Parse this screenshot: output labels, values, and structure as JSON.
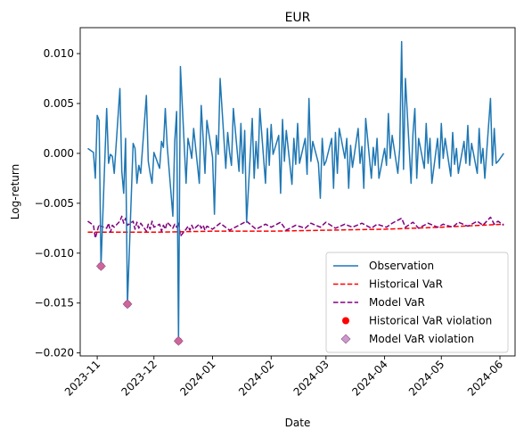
{
  "chart_data": {
    "type": "line",
    "title": "EUR",
    "xlabel": "Date",
    "ylabel": "Log-return",
    "x_range": [
      "2023-10-23",
      "2024-06-09"
    ],
    "ylim": [
      -0.0203,
      0.0126
    ],
    "x_ticks": [
      "2023-11-01",
      "2023-12-01",
      "2024-01-01",
      "2024-02-01",
      "2024-03-01",
      "2024-04-01",
      "2024-05-01",
      "2024-06-01"
    ],
    "x_tick_labels": [
      "2023-11",
      "2023-12",
      "2024-01",
      "2024-02",
      "2024-03",
      "2024-04",
      "2024-05",
      "2024-06"
    ],
    "y_ticks": [
      -0.02,
      -0.015,
      -0.01,
      -0.005,
      0.0,
      0.005,
      0.01
    ],
    "y_tick_labels": [
      "−0.020",
      "−0.015",
      "−0.010",
      "−0.005",
      "0.000",
      "0.005",
      "0.010"
    ],
    "grid": false,
    "legend_position": "lower-right",
    "colors": {
      "observation": "#1f77b4",
      "historical_var": "#ff0000",
      "model_var": "#800080",
      "historical_violation": "#ff0000",
      "model_violation": "#c080c0"
    },
    "series": [
      {
        "name": "Observation",
        "style": "solid",
        "points": [
          [
            "2023-10-27",
            0.0005
          ],
          [
            "2023-10-30",
            0.0001
          ],
          [
            "2023-10-31",
            -0.0025
          ],
          [
            "2023-11-01",
            0.0038
          ],
          [
            "2023-11-02",
            0.0033
          ],
          [
            "2023-11-03",
            -0.0113
          ],
          [
            "2023-11-06",
            0.0045
          ],
          [
            "2023-11-07",
            -0.001
          ],
          [
            "2023-11-08",
            -0.0001
          ],
          [
            "2023-11-09",
            -0.0003
          ],
          [
            "2023-11-10",
            -0.002
          ],
          [
            "2023-11-13",
            0.0065
          ],
          [
            "2023-11-14",
            -0.0018
          ],
          [
            "2023-11-15",
            -0.004
          ],
          [
            "2023-11-16",
            0.0015
          ],
          [
            "2023-11-17",
            -0.0151
          ],
          [
            "2023-11-20",
            0.001
          ],
          [
            "2023-11-21",
            0.0005
          ],
          [
            "2023-11-22",
            -0.003
          ],
          [
            "2023-11-23",
            -0.0012
          ],
          [
            "2023-11-24",
            -0.002
          ],
          [
            "2023-11-27",
            0.0058
          ],
          [
            "2023-11-28",
            -0.0008
          ],
          [
            "2023-11-29",
            -0.002
          ],
          [
            "2023-11-30",
            -0.003
          ],
          [
            "2023-12-01",
            0.0001
          ],
          [
            "2023-12-04",
            -0.0015
          ],
          [
            "2023-12-05",
            0.0012
          ],
          [
            "2023-12-06",
            0.0006
          ],
          [
            "2023-12-07",
            0.0045
          ],
          [
            "2023-12-08",
            0.0008
          ],
          [
            "2023-12-11",
            -0.0063
          ],
          [
            "2023-12-12",
            0.0012
          ],
          [
            "2023-12-13",
            0.0042
          ],
          [
            "2023-12-14",
            -0.0188
          ],
          [
            "2023-12-15",
            0.0087
          ],
          [
            "2023-12-18",
            -0.003
          ],
          [
            "2023-12-19",
            0.0015
          ],
          [
            "2023-12-20",
            0.0006
          ],
          [
            "2023-12-21",
            -0.0005
          ],
          [
            "2023-12-22",
            0.0025
          ],
          [
            "2023-12-25",
            -0.003
          ],
          [
            "2023-12-26",
            0.0048
          ],
          [
            "2023-12-27",
            0.0016
          ],
          [
            "2023-12-28",
            -0.002
          ],
          [
            "2023-12-29",
            0.0033
          ],
          [
            "2024-01-01",
            -0.0004
          ],
          [
            "2024-01-02",
            -0.0061
          ],
          [
            "2024-01-03",
            0.0018
          ],
          [
            "2024-01-04",
            -0.0001
          ],
          [
            "2024-01-05",
            0.0075
          ],
          [
            "2024-01-08",
            -0.0015
          ],
          [
            "2024-01-09",
            0.0021
          ],
          [
            "2024-01-10",
            0.0001
          ],
          [
            "2024-01-11",
            -0.0012
          ],
          [
            "2024-01-12",
            0.0045
          ],
          [
            "2024-01-15",
            -0.0018
          ],
          [
            "2024-01-16",
            0.003
          ],
          [
            "2024-01-17",
            -0.002
          ],
          [
            "2024-01-18",
            0.0023
          ],
          [
            "2024-01-19",
            -0.0069
          ],
          [
            "2024-01-22",
            0.0035
          ],
          [
            "2024-01-23",
            -0.0025
          ],
          [
            "2024-01-24",
            0.0012
          ],
          [
            "2024-01-25",
            -0.0015
          ],
          [
            "2024-01-26",
            0.0045
          ],
          [
            "2024-01-29",
            -0.003
          ],
          [
            "2024-01-30",
            0.0025
          ],
          [
            "2024-01-31",
            -0.0012
          ],
          [
            "2024-02-01",
            0.0029
          ],
          [
            "2024-02-02",
            -0.0001
          ],
          [
            "2024-02-05",
            0.0018
          ],
          [
            "2024-02-06",
            -0.004
          ],
          [
            "2024-02-07",
            0.0034
          ],
          [
            "2024-02-08",
            -0.0008
          ],
          [
            "2024-02-09",
            0.0023
          ],
          [
            "2024-02-12",
            -0.0031
          ],
          [
            "2024-02-13",
            0.0015
          ],
          [
            "2024-02-14",
            -0.0011
          ],
          [
            "2024-02-15",
            0.003
          ],
          [
            "2024-02-16",
            -0.001
          ],
          [
            "2024-02-19",
            0.0015
          ],
          [
            "2024-02-20",
            -0.0021
          ],
          [
            "2024-02-21",
            0.0055
          ],
          [
            "2024-02-22",
            -0.0008
          ],
          [
            "2024-02-23",
            0.0012
          ],
          [
            "2024-02-26",
            -0.001
          ],
          [
            "2024-02-27",
            -0.0045
          ],
          [
            "2024-02-28",
            0.0015
          ],
          [
            "2024-02-29",
            -0.0012
          ],
          [
            "2024-03-01",
            -0.0008
          ],
          [
            "2024-03-04",
            0.0015
          ],
          [
            "2024-03-05",
            -0.0035
          ],
          [
            "2024-03-06",
            0.0021
          ],
          [
            "2024-03-07",
            -0.002
          ],
          [
            "2024-03-08",
            0.0025
          ],
          [
            "2024-03-11",
            -0.0005
          ],
          [
            "2024-03-12",
            0.0015
          ],
          [
            "2024-03-13",
            -0.0035
          ],
          [
            "2024-03-14",
            0.0008
          ],
          [
            "2024-03-15",
            -0.0014
          ],
          [
            "2024-03-18",
            0.0025
          ],
          [
            "2024-03-19",
            -0.001
          ],
          [
            "2024-03-20",
            0.0007
          ],
          [
            "2024-03-21",
            -0.0035
          ],
          [
            "2024-03-22",
            0.0035
          ],
          [
            "2024-03-25",
            -0.0025
          ],
          [
            "2024-03-26",
            0.0006
          ],
          [
            "2024-03-27",
            -0.0012
          ],
          [
            "2024-03-28",
            0.0015
          ],
          [
            "2024-03-29",
            -0.0025
          ],
          [
            "2024-04-01",
            0.0005
          ],
          [
            "2024-04-02",
            -0.0012
          ],
          [
            "2024-04-03",
            0.004
          ],
          [
            "2024-04-04",
            -0.0005
          ],
          [
            "2024-04-05",
            0.0018
          ],
          [
            "2024-04-08",
            -0.002
          ],
          [
            "2024-04-09",
            0.0005
          ],
          [
            "2024-04-10",
            0.0112
          ],
          [
            "2024-04-11",
            -0.0016
          ],
          [
            "2024-04-12",
            0.0075
          ],
          [
            "2024-04-15",
            -0.003
          ],
          [
            "2024-04-16",
            0.002
          ],
          [
            "2024-04-17",
            0.0045
          ],
          [
            "2024-04-18",
            -0.0025
          ],
          [
            "2024-04-19",
            0.0015
          ],
          [
            "2024-04-22",
            -0.0015
          ],
          [
            "2024-04-23",
            0.003
          ],
          [
            "2024-04-24",
            -0.001
          ],
          [
            "2024-04-25",
            0.0015
          ],
          [
            "2024-04-26",
            -0.003
          ],
          [
            "2024-04-29",
            0.0015
          ],
          [
            "2024-04-30",
            -0.0015
          ],
          [
            "2024-05-01",
            0.003
          ],
          [
            "2024-05-02",
            -0.0005
          ],
          [
            "2024-05-03",
            0.0015
          ],
          [
            "2024-05-06",
            -0.0023
          ],
          [
            "2024-05-07",
            0.0021
          ],
          [
            "2024-05-08",
            -0.0011
          ],
          [
            "2024-05-09",
            0.0005
          ],
          [
            "2024-05-10",
            -0.002
          ],
          [
            "2024-05-13",
            0.0012
          ],
          [
            "2024-05-14",
            -0.001
          ],
          [
            "2024-05-15",
            0.0028
          ],
          [
            "2024-05-16",
            -0.0012
          ],
          [
            "2024-05-17",
            0.001
          ],
          [
            "2024-05-20",
            -0.002
          ],
          [
            "2024-05-21",
            0.0025
          ],
          [
            "2024-05-22",
            -0.001
          ],
          [
            "2024-05-23",
            0.0005
          ],
          [
            "2024-05-24",
            -0.0025
          ],
          [
            "2024-05-27",
            0.0055
          ],
          [
            "2024-05-28",
            -0.0012
          ],
          [
            "2024-05-29",
            0.0025
          ],
          [
            "2024-05-30",
            -0.001
          ],
          [
            "2024-05-31",
            -0.0008
          ],
          [
            "2024-06-03",
            0.0
          ]
        ]
      },
      {
        "name": "Historical VaR",
        "style": "dashed",
        "points": [
          [
            "2023-10-27",
            -0.0079
          ],
          [
            "2023-12-01",
            -0.0079
          ],
          [
            "2024-01-01",
            -0.0078
          ],
          [
            "2024-02-01",
            -0.0078
          ],
          [
            "2024-03-01",
            -0.0077
          ],
          [
            "2024-04-01",
            -0.0076
          ],
          [
            "2024-05-01",
            -0.0074
          ],
          [
            "2024-06-03",
            -0.0071
          ]
        ]
      },
      {
        "name": "Model VaR",
        "style": "dashed",
        "points": [
          [
            "2023-10-27",
            -0.0068
          ],
          [
            "2023-10-30",
            -0.0072
          ],
          [
            "2023-10-31",
            -0.0085
          ],
          [
            "2023-11-01",
            -0.0078
          ],
          [
            "2023-11-02",
            -0.0071
          ],
          [
            "2023-11-03",
            -0.0073
          ],
          [
            "2023-11-06",
            -0.0075
          ],
          [
            "2023-11-07",
            -0.007
          ],
          [
            "2023-11-08",
            -0.0079
          ],
          [
            "2023-11-09",
            -0.0072
          ],
          [
            "2023-11-10",
            -0.0074
          ],
          [
            "2023-11-13",
            -0.0068
          ],
          [
            "2023-11-14",
            -0.0063
          ],
          [
            "2023-11-15",
            -0.007
          ],
          [
            "2023-11-16",
            -0.0065
          ],
          [
            "2023-11-17",
            -0.0072
          ],
          [
            "2023-11-20",
            -0.0068
          ],
          [
            "2023-11-21",
            -0.0076
          ],
          [
            "2023-11-22",
            -0.0069
          ],
          [
            "2023-11-23",
            -0.0075
          ],
          [
            "2023-11-24",
            -0.007
          ],
          [
            "2023-11-27",
            -0.0078
          ],
          [
            "2023-11-28",
            -0.0071
          ],
          [
            "2023-11-29",
            -0.0076
          ],
          [
            "2023-11-30",
            -0.0068
          ],
          [
            "2023-12-01",
            -0.0074
          ],
          [
            "2023-12-04",
            -0.0071
          ],
          [
            "2023-12-05",
            -0.0078
          ],
          [
            "2023-12-06",
            -0.0072
          ],
          [
            "2023-12-07",
            -0.0076
          ],
          [
            "2023-12-08",
            -0.0069
          ],
          [
            "2023-12-11",
            -0.0075
          ],
          [
            "2023-12-12",
            -0.0071
          ],
          [
            "2023-12-13",
            -0.0074
          ],
          [
            "2023-12-14",
            -0.0069
          ],
          [
            "2023-12-15",
            -0.0083
          ],
          [
            "2023-12-18",
            -0.0076
          ],
          [
            "2023-12-19",
            -0.0073
          ],
          [
            "2023-12-20",
            -0.0077
          ],
          [
            "2023-12-21",
            -0.0072
          ],
          [
            "2023-12-22",
            -0.0076
          ],
          [
            "2023-12-25",
            -0.0071
          ],
          [
            "2023-12-26",
            -0.0075
          ],
          [
            "2023-12-27",
            -0.0072
          ],
          [
            "2023-12-28",
            -0.0077
          ],
          [
            "2023-12-29",
            -0.0073
          ],
          [
            "2024-01-01",
            -0.0076
          ],
          [
            "2024-01-05",
            -0.007
          ],
          [
            "2024-01-10",
            -0.0077
          ],
          [
            "2024-01-15",
            -0.0072
          ],
          [
            "2024-01-19",
            -0.0068
          ],
          [
            "2024-01-24",
            -0.0076
          ],
          [
            "2024-01-29",
            -0.0071
          ],
          [
            "2024-02-01",
            -0.0074
          ],
          [
            "2024-02-06",
            -0.0069
          ],
          [
            "2024-02-09",
            -0.0077
          ],
          [
            "2024-02-14",
            -0.0072
          ],
          [
            "2024-02-19",
            -0.0075
          ],
          [
            "2024-02-22",
            -0.007
          ],
          [
            "2024-02-27",
            -0.0074
          ],
          [
            "2024-03-01",
            -0.0069
          ],
          [
            "2024-03-06",
            -0.0075
          ],
          [
            "2024-03-11",
            -0.0071
          ],
          [
            "2024-03-15",
            -0.0074
          ],
          [
            "2024-03-20",
            -0.007
          ],
          [
            "2024-03-25",
            -0.0075
          ],
          [
            "2024-03-28",
            -0.0071
          ],
          [
            "2024-04-02",
            -0.0074
          ],
          [
            "2024-04-05",
            -0.007
          ],
          [
            "2024-04-10",
            -0.0065
          ],
          [
            "2024-04-12",
            -0.0074
          ],
          [
            "2024-04-16",
            -0.0069
          ],
          [
            "2024-04-19",
            -0.0075
          ],
          [
            "2024-04-24",
            -0.007
          ],
          [
            "2024-04-29",
            -0.0074
          ],
          [
            "2024-05-02",
            -0.0071
          ],
          [
            "2024-05-07",
            -0.0074
          ],
          [
            "2024-05-10",
            -0.0069
          ],
          [
            "2024-05-15",
            -0.0073
          ],
          [
            "2024-05-20",
            -0.0068
          ],
          [
            "2024-05-23",
            -0.0072
          ],
          [
            "2024-05-27",
            -0.0064
          ],
          [
            "2024-05-29",
            -0.0071
          ],
          [
            "2024-05-31",
            -0.0068
          ],
          [
            "2024-06-03",
            -0.0072
          ]
        ]
      }
    ],
    "violations": [
      {
        "name": "Historical VaR violation",
        "marker": "circle",
        "points": [
          [
            "2023-11-03",
            -0.0113
          ],
          [
            "2023-11-17",
            -0.0151
          ],
          [
            "2023-12-14",
            -0.0188
          ]
        ]
      },
      {
        "name": "Model VaR violation",
        "marker": "diamond",
        "points": [
          [
            "2023-11-03",
            -0.0113
          ],
          [
            "2023-11-17",
            -0.0151
          ],
          [
            "2023-12-14",
            -0.0188
          ]
        ]
      }
    ]
  }
}
